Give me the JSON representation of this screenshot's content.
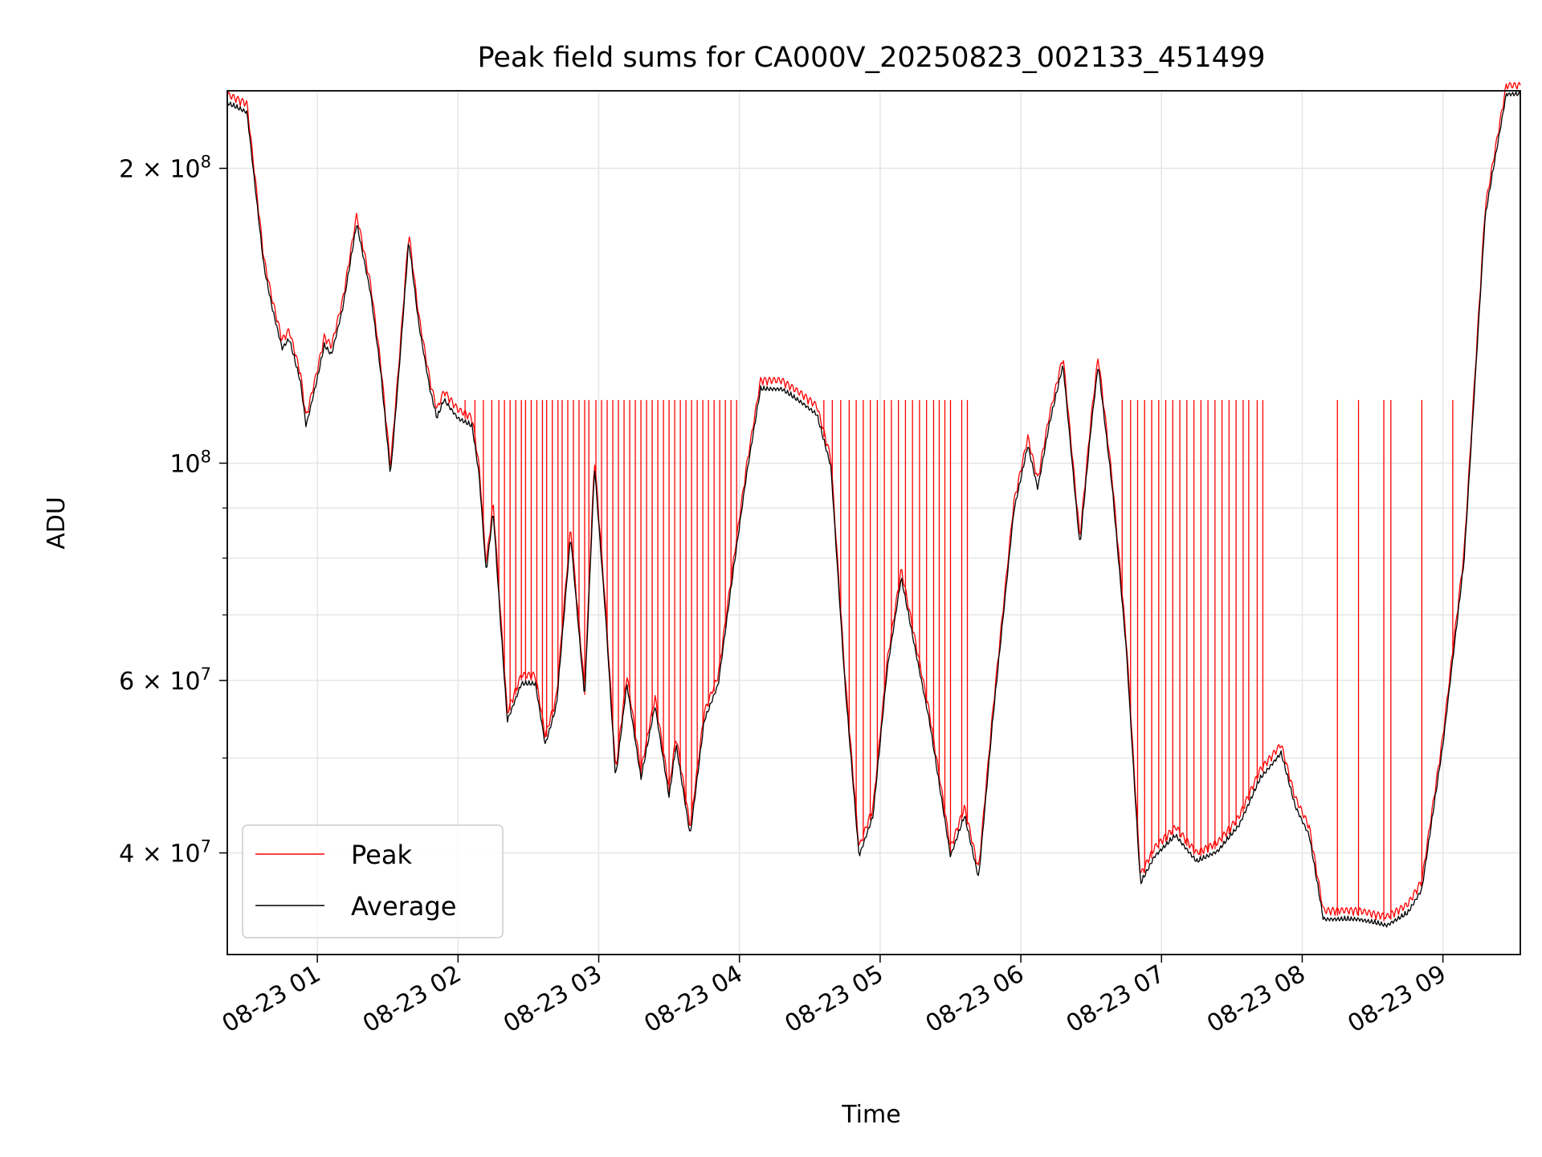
{
  "chart_data": {
    "type": "line",
    "title": "Peak field sums for CA000V_20250823_002133_451499",
    "xlabel": "Time",
    "ylabel": "ADU",
    "x_range_hours": [
      "08-23 00:22",
      "08-23 09:33"
    ],
    "ylim": [
      31500000,
      240000000
    ],
    "yscale": "log",
    "grid": true,
    "legend_position": "lower-left",
    "x_ticks": [
      {
        "label": "08-23 01",
        "value": 1
      },
      {
        "label": "08-23 02",
        "value": 2
      },
      {
        "label": "08-23 03",
        "value": 3
      },
      {
        "label": "08-23 04",
        "value": 4
      },
      {
        "label": "08-23 05",
        "value": 5
      },
      {
        "label": "08-23 06",
        "value": 6
      },
      {
        "label": "08-23 07",
        "value": 7
      },
      {
        "label": "08-23 08",
        "value": 8
      },
      {
        "label": "08-23 09",
        "value": 9
      }
    ],
    "y_major_ticks": [
      {
        "label_base": "10",
        "label_exp": "8",
        "label_mult": "",
        "value": 100000000
      },
      {
        "label_base": "10",
        "label_exp": "8",
        "label_mult": "2 × ",
        "value": 200000000
      },
      {
        "label_base": "10",
        "label_exp": "7",
        "label_mult": "4 × ",
        "value": 40000000
      },
      {
        "label_base": "10",
        "label_exp": "7",
        "label_mult": "6 × ",
        "value": 60000000
      }
    ],
    "y_minor_ticks": [
      50000000,
      70000000,
      80000000,
      90000000
    ],
    "series": [
      {
        "name": "Peak",
        "color": "#ff0000",
        "clip_level": 116000000,
        "points": [
          [
            0.36,
            235000000
          ],
          [
            0.5,
            230000000
          ],
          [
            0.62,
            160000000
          ],
          [
            0.68,
            145000000
          ],
          [
            0.75,
            132000000
          ],
          [
            0.8,
            135000000
          ],
          [
            0.88,
            122000000
          ],
          [
            0.92,
            110000000
          ],
          [
            1.0,
            123000000
          ],
          [
            1.05,
            133000000
          ],
          [
            1.1,
            130000000
          ],
          [
            1.18,
            145000000
          ],
          [
            1.28,
            177000000
          ],
          [
            1.38,
            150000000
          ],
          [
            1.45,
            125000000
          ],
          [
            1.52,
            98000000
          ],
          [
            1.58,
            125000000
          ],
          [
            1.65,
            170000000
          ],
          [
            1.72,
            140000000
          ],
          [
            1.8,
            120000000
          ],
          [
            1.85,
            112000000
          ],
          [
            1.9,
            117000000
          ],
          [
            2.0,
            112000000
          ],
          [
            2.1,
            110000000
          ],
          [
            2.15,
            98000000
          ],
          [
            2.2,
            78000000
          ],
          [
            2.25,
            90000000
          ],
          [
            2.3,
            70000000
          ],
          [
            2.35,
            55000000
          ],
          [
            2.45,
            60000000
          ],
          [
            2.55,
            60000000
          ],
          [
            2.62,
            52000000
          ],
          [
            2.7,
            57000000
          ],
          [
            2.8,
            85000000
          ],
          [
            2.9,
            58000000
          ],
          [
            2.97,
            100000000
          ],
          [
            3.05,
            70000000
          ],
          [
            3.12,
            48000000
          ],
          [
            3.2,
            60000000
          ],
          [
            3.3,
            48000000
          ],
          [
            3.4,
            57000000
          ],
          [
            3.5,
            46000000
          ],
          [
            3.55,
            52000000
          ],
          [
            3.65,
            42000000
          ],
          [
            3.75,
            55000000
          ],
          [
            3.85,
            60000000
          ],
          [
            3.95,
            77000000
          ],
          [
            4.05,
            98000000
          ],
          [
            4.15,
            120000000
          ],
          [
            4.3,
            120000000
          ],
          [
            4.45,
            116000000
          ],
          [
            4.55,
            113000000
          ],
          [
            4.65,
            100000000
          ],
          [
            4.75,
            60000000
          ],
          [
            4.85,
            40000000
          ],
          [
            4.95,
            44000000
          ],
          [
            5.05,
            62000000
          ],
          [
            5.15,
            77000000
          ],
          [
            5.25,
            65000000
          ],
          [
            5.35,
            55000000
          ],
          [
            5.5,
            40000000
          ],
          [
            5.6,
            44000000
          ],
          [
            5.7,
            38000000
          ],
          [
            5.8,
            55000000
          ],
          [
            5.95,
            90000000
          ],
          [
            6.05,
            105000000
          ],
          [
            6.12,
            95000000
          ],
          [
            6.2,
            110000000
          ],
          [
            6.3,
            127000000
          ],
          [
            6.42,
            83000000
          ],
          [
            6.5,
            110000000
          ],
          [
            6.55,
            127000000
          ],
          [
            6.65,
            95000000
          ],
          [
            6.75,
            65000000
          ],
          [
            6.85,
            37500000
          ],
          [
            6.95,
            40000000
          ],
          [
            7.1,
            42000000
          ],
          [
            7.25,
            39500000
          ],
          [
            7.4,
            40500000
          ],
          [
            7.55,
            43000000
          ],
          [
            7.7,
            48000000
          ],
          [
            7.85,
            51000000
          ],
          [
            7.95,
            45000000
          ],
          [
            8.05,
            42000000
          ],
          [
            8.15,
            34500000
          ],
          [
            8.4,
            34500000
          ],
          [
            8.6,
            34000000
          ],
          [
            8.75,
            35000000
          ],
          [
            8.85,
            37000000
          ],
          [
            9.0,
            52000000
          ],
          [
            9.15,
            80000000
          ],
          [
            9.3,
            180000000
          ],
          [
            9.45,
            240000000
          ],
          [
            9.55,
            240000000
          ]
        ],
        "spike_times": [
          2.05,
          2.12,
          2.18,
          2.24,
          2.29,
          2.33,
          2.37,
          2.41,
          2.45,
          2.48,
          2.52,
          2.56,
          2.6,
          2.63,
          2.67,
          2.71,
          2.74,
          2.78,
          2.82,
          2.86,
          2.9,
          2.93,
          2.98,
          3.02,
          3.06,
          3.1,
          3.14,
          3.18,
          3.22,
          3.26,
          3.3,
          3.34,
          3.38,
          3.42,
          3.46,
          3.5,
          3.54,
          3.58,
          3.62,
          3.66,
          3.7,
          3.74,
          3.78,
          3.82,
          3.86,
          3.9,
          3.94,
          3.98,
          4.6,
          4.66,
          4.72,
          4.78,
          4.83,
          4.88,
          4.93,
          4.98,
          5.03,
          5.08,
          5.13,
          5.18,
          5.23,
          5.28,
          5.33,
          5.38,
          5.42,
          5.46,
          5.5,
          5.58,
          5.62,
          6.72,
          6.78,
          6.83,
          6.88,
          6.93,
          6.98,
          7.03,
          7.08,
          7.13,
          7.18,
          7.23,
          7.28,
          7.33,
          7.38,
          7.43,
          7.48,
          7.53,
          7.58,
          7.62,
          7.68,
          7.72,
          8.25,
          8.4,
          8.58,
          8.63,
          8.85,
          9.07
        ]
      },
      {
        "name": "Average",
        "color": "#000000"
      }
    ]
  }
}
